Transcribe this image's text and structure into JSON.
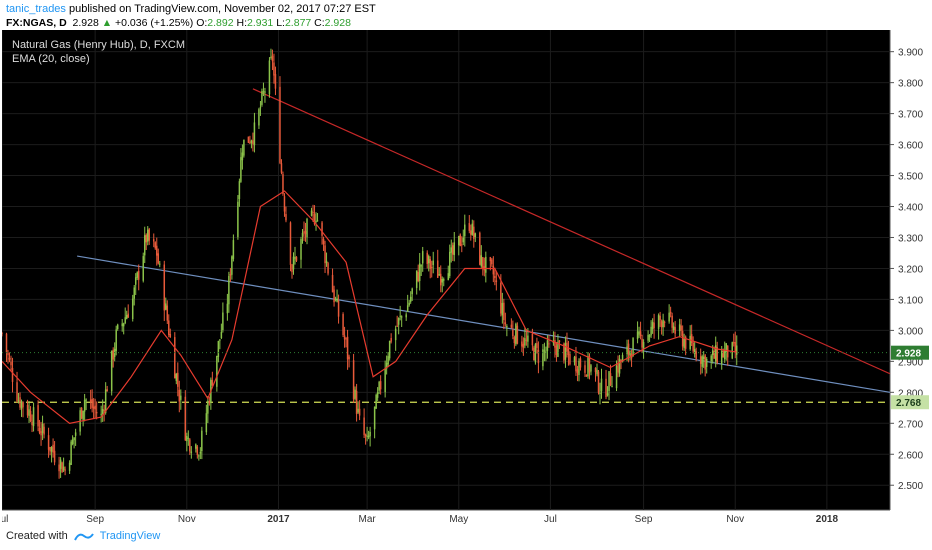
{
  "header": {
    "author": "tanic_trades",
    "published": "published on TradingView.com, November 02, 2017 07:27 EST",
    "symbol": "FX:NGAS, D",
    "last": "2.928",
    "change_arrow": "▲",
    "change": "+0.036 (+1.25%)",
    "o_label": "O:",
    "open": "2.892",
    "h_label": "H:",
    "high": "2.931",
    "l_label": "L:",
    "low": "2.877",
    "c_label": "C:",
    "close": "2.928"
  },
  "footer": {
    "created_with": "Created with",
    "brand": "TradingView",
    "logo_icon": "tradingview-logo-icon"
  },
  "chart_data": {
    "type": "line",
    "subtype": "candlestick",
    "title": "Natural Gas (Henry Hub), D, FXCM",
    "indicator_label": "EMA (20, close)",
    "background": "#000000",
    "colors": {
      "up_candle": "#8bc34a",
      "down_candle": "#e85a3a",
      "ema": "#e63b2e",
      "resistance": "#c62828",
      "support": "#6f8fbf",
      "horizontal": "#d4e157",
      "last_price_label": "#2e7d32"
    },
    "ylim": [
      2.42,
      3.97
    ],
    "y_ticks": [
      "2.500",
      "2.600",
      "2.700",
      "2.800",
      "2.900",
      "3.000",
      "3.100",
      "3.200",
      "3.300",
      "3.400",
      "3.500",
      "3.600",
      "3.700",
      "3.800",
      "3.900"
    ],
    "x_range": [
      "2016-07-01",
      "2018-02-12"
    ],
    "x_ticks": [
      {
        "label": "Jul",
        "date": "2016-07-01"
      },
      {
        "label": "Sep",
        "date": "2016-09-01"
      },
      {
        "label": "Nov",
        "date": "2016-11-01"
      },
      {
        "label": "2017",
        "date": "2017-01-01"
      },
      {
        "label": "Mar",
        "date": "2017-03-01"
      },
      {
        "label": "May",
        "date": "2017-05-01"
      },
      {
        "label": "Jul",
        "date": "2017-07-01"
      },
      {
        "label": "Sep",
        "date": "2017-09-01"
      },
      {
        "label": "Nov",
        "date": "2017-11-01"
      },
      {
        "label": "2018",
        "date": "2018-01-01"
      }
    ],
    "price_labels": [
      {
        "value": "2.928",
        "color": "#2e7d32"
      },
      {
        "value": "2.768",
        "color": "#c5e1a5"
      }
    ],
    "path": [
      [
        "2016-07-01",
        2.99
      ],
      [
        "2016-07-12",
        2.78
      ],
      [
        "2016-07-22",
        2.72
      ],
      [
        "2016-08-05",
        2.6
      ],
      [
        "2016-08-12",
        2.55
      ],
      [
        "2016-08-25",
        2.78
      ],
      [
        "2016-09-05",
        2.72
      ],
      [
        "2016-09-15",
        2.98
      ],
      [
        "2016-09-26",
        3.1
      ],
      [
        "2016-10-05",
        3.3
      ],
      [
        "2016-10-12",
        3.25
      ],
      [
        "2016-10-24",
        2.88
      ],
      [
        "2016-11-01",
        2.65
      ],
      [
        "2016-11-10",
        2.62
      ],
      [
        "2016-11-18",
        2.85
      ],
      [
        "2016-11-28",
        3.1
      ],
      [
        "2016-12-08",
        3.6
      ],
      [
        "2016-12-16",
        3.64
      ],
      [
        "2016-12-28",
        3.88
      ],
      [
        "2017-01-04",
        3.45
      ],
      [
        "2017-01-10",
        3.2
      ],
      [
        "2017-01-17",
        3.3
      ],
      [
        "2017-01-26",
        3.38
      ],
      [
        "2017-02-06",
        3.13
      ],
      [
        "2017-02-15",
        2.95
      ],
      [
        "2017-02-24",
        2.7
      ],
      [
        "2017-03-01",
        2.63
      ],
      [
        "2017-03-08",
        2.78
      ],
      [
        "2017-03-17",
        2.98
      ],
      [
        "2017-03-28",
        3.08
      ],
      [
        "2017-04-07",
        3.23
      ],
      [
        "2017-04-19",
        3.18
      ],
      [
        "2017-04-28",
        3.25
      ],
      [
        "2017-05-08",
        3.35
      ],
      [
        "2017-05-16",
        3.22
      ],
      [
        "2017-05-24",
        3.18
      ],
      [
        "2017-06-01",
        3.02
      ],
      [
        "2017-06-12",
        2.97
      ],
      [
        "2017-06-23",
        2.92
      ],
      [
        "2017-07-05",
        2.95
      ],
      [
        "2017-07-17",
        2.9
      ],
      [
        "2017-07-28",
        2.88
      ],
      [
        "2017-08-05",
        2.8
      ],
      [
        "2017-08-14",
        2.88
      ],
      [
        "2017-08-25",
        2.95
      ],
      [
        "2017-09-06",
        3.0
      ],
      [
        "2017-09-15",
        3.05
      ],
      [
        "2017-09-22",
        3.0
      ],
      [
        "2017-10-02",
        2.95
      ],
      [
        "2017-10-13",
        2.9
      ],
      [
        "2017-10-20",
        2.92
      ],
      [
        "2017-10-27",
        2.93
      ],
      [
        "2017-11-02",
        2.928
      ]
    ],
    "ema": [
      [
        "2016-07-01",
        2.9
      ],
      [
        "2016-07-20",
        2.8
      ],
      [
        "2016-08-15",
        2.7
      ],
      [
        "2016-09-05",
        2.72
      ],
      [
        "2016-09-25",
        2.85
      ],
      [
        "2016-10-15",
        3.0
      ],
      [
        "2016-10-28",
        2.92
      ],
      [
        "2016-11-15",
        2.78
      ],
      [
        "2016-12-01",
        2.97
      ],
      [
        "2016-12-20",
        3.4
      ],
      [
        "2017-01-05",
        3.45
      ],
      [
        "2017-01-25",
        3.35
      ],
      [
        "2017-02-15",
        3.22
      ],
      [
        "2017-03-05",
        2.85
      ],
      [
        "2017-03-20",
        2.9
      ],
      [
        "2017-04-10",
        3.05
      ],
      [
        "2017-05-05",
        3.2
      ],
      [
        "2017-05-25",
        3.2
      ],
      [
        "2017-06-15",
        3.0
      ],
      [
        "2017-07-10",
        2.95
      ],
      [
        "2017-08-10",
        2.88
      ],
      [
        "2017-09-05",
        2.95
      ],
      [
        "2017-09-25",
        2.98
      ],
      [
        "2017-10-20",
        2.94
      ],
      [
        "2017-11-02",
        2.93
      ]
    ],
    "trendlines": [
      {
        "name": "resistance",
        "from": [
          "2016-12-15",
          3.78
        ],
        "to": [
          "2018-02-12",
          2.86
        ]
      },
      {
        "name": "support",
        "from": [
          "2016-08-20",
          3.24
        ],
        "to": [
          "2018-02-12",
          2.8
        ]
      },
      {
        "name": "horizontal",
        "from": [
          "2016-07-01",
          2.768
        ],
        "to": [
          "2018-02-12",
          2.768
        ]
      }
    ]
  }
}
